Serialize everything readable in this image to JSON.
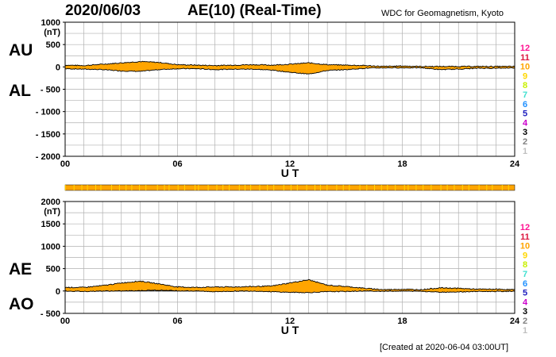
{
  "header": {
    "date": "2020/06/03",
    "title": "AE(10) (Real-Time)",
    "source": "WDC for Geomagnetism, Kyoto"
  },
  "footer": {
    "created": "[Created at 2020-06-04 03:00UT]"
  },
  "labels": {
    "au": "AU",
    "al": "AL",
    "ae": "AE",
    "ao": "AO",
    "unit": "(nT)",
    "x_title": "U T"
  },
  "station_legend": [
    {
      "label": "12",
      "color": "#ff1493"
    },
    {
      "label": "11",
      "color": "#dc143c"
    },
    {
      "label": "10",
      "color": "#ffa500"
    },
    {
      "label": "9",
      "color": "#ffd700"
    },
    {
      "label": "8",
      "color": "#c8f000"
    },
    {
      "label": "7",
      "color": "#40e0d0"
    },
    {
      "label": "6",
      "color": "#1e90ff"
    },
    {
      "label": "5",
      "color": "#1e1ebe"
    },
    {
      "label": "4",
      "color": "#cc00cc"
    },
    {
      "label": "3",
      "color": "#000000"
    },
    {
      "label": "2",
      "color": "#808080"
    },
    {
      "label": "1",
      "color": "#c0c0c0"
    }
  ],
  "colors": {
    "fill": "#ffa500",
    "line": "#000000",
    "grid": "#b0b0b0",
    "dropout": "#ffd700"
  },
  "chart_data": [
    {
      "type": "area",
      "name": "AU/AL",
      "xlabel": "U T",
      "ylabel": "(nT)",
      "xlim": [
        0,
        24
      ],
      "ylim": [
        -2000,
        1000
      ],
      "x_ticks": [
        "00",
        "06",
        "12",
        "18",
        "24"
      ],
      "y_ticks": [
        "1000",
        "500",
        "0",
        "- 500",
        "- 1000",
        "- 1500",
        "- 2000"
      ],
      "y_tick_values": [
        1000,
        500,
        0,
        -500,
        -1000,
        -1500,
        -2000
      ],
      "x_hours": [
        0,
        1,
        2,
        3,
        4,
        5,
        6,
        7,
        8,
        9,
        10,
        11,
        12,
        13,
        14,
        15,
        16,
        17,
        18,
        19,
        20,
        21,
        22,
        23,
        24
      ],
      "series": [
        {
          "name": "AU",
          "values": [
            40,
            30,
            60,
            90,
            120,
            100,
            50,
            40,
            30,
            40,
            50,
            40,
            60,
            90,
            50,
            40,
            30,
            10,
            20,
            10,
            10,
            10,
            10,
            10,
            10
          ]
        },
        {
          "name": "AL",
          "values": [
            -40,
            -50,
            -60,
            -90,
            -100,
            -60,
            -40,
            -40,
            -60,
            -50,
            -50,
            -70,
            -120,
            -160,
            -80,
            -60,
            -30,
            -20,
            -20,
            -20,
            -60,
            -50,
            -30,
            -30,
            -20
          ]
        }
      ]
    },
    {
      "type": "area",
      "name": "AE/AO",
      "xlabel": "U T",
      "ylabel": "(nT)",
      "xlim": [
        0,
        24
      ],
      "ylim": [
        -500,
        2000
      ],
      "x_ticks": [
        "00",
        "06",
        "12",
        "18",
        "24"
      ],
      "y_ticks": [
        "2000",
        "1500",
        "1000",
        "500",
        "0",
        "- 500"
      ],
      "y_tick_values": [
        2000,
        1500,
        1000,
        500,
        0,
        -500
      ],
      "x_hours": [
        0,
        1,
        2,
        3,
        4,
        5,
        6,
        7,
        8,
        9,
        10,
        11,
        12,
        13,
        14,
        15,
        16,
        17,
        18,
        19,
        20,
        21,
        22,
        23,
        24
      ],
      "series": [
        {
          "name": "AE",
          "values": [
            80,
            80,
            120,
            180,
            220,
            160,
            90,
            80,
            90,
            90,
            100,
            110,
            180,
            250,
            130,
            100,
            60,
            30,
            40,
            30,
            70,
            60,
            40,
            40,
            30
          ]
        },
        {
          "name": "AO",
          "values": [
            0,
            -10,
            0,
            0,
            10,
            20,
            5,
            0,
            -15,
            -5,
            0,
            -15,
            -30,
            -35,
            -15,
            -10,
            0,
            -5,
            0,
            -5,
            -25,
            -20,
            -10,
            -10,
            -5
          ]
        }
      ]
    }
  ]
}
